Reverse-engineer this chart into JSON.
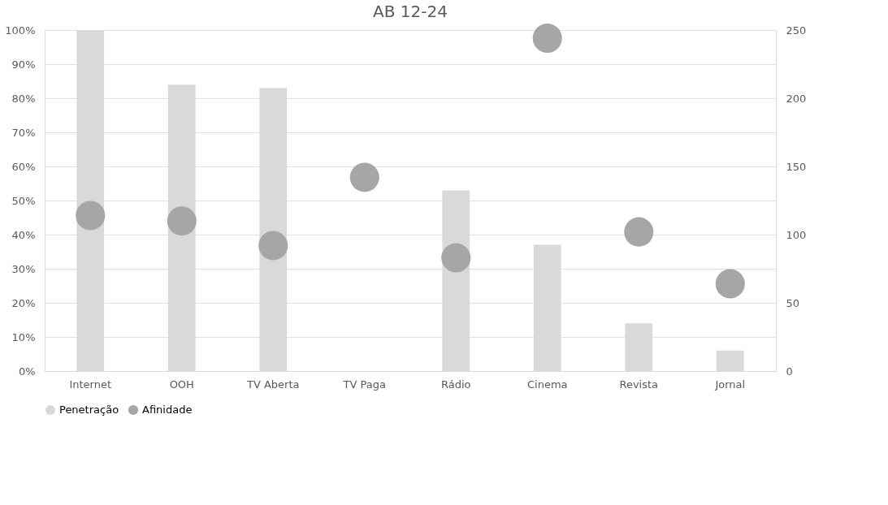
{
  "chart_data": {
    "type": "bar",
    "title": "AB 12-24",
    "categories": [
      "Internet",
      "OOH",
      "TV Aberta",
      "TV Paga",
      "Rádio",
      "Cinema",
      "Revista",
      "Jornal"
    ],
    "series": [
      {
        "name": "Penetração",
        "color": "#d9d9d9",
        "values": [
          100,
          84,
          83,
          null,
          53,
          37,
          14,
          6
        ]
      },
      {
        "name": "Afinidade",
        "type": "scatter",
        "axis": "y2",
        "color": "#a6a6a6",
        "values": [
          114,
          110,
          92,
          142,
          83,
          244,
          102,
          64
        ]
      }
    ],
    "ylim": [
      0,
      100
    ],
    "yticks": [
      {
        "value": 0,
        "label": "0%"
      },
      {
        "value": 10,
        "label": "10%"
      },
      {
        "value": 20,
        "label": "20%"
      },
      {
        "value": 30,
        "label": "30%"
      },
      {
        "value": 40,
        "label": "40%"
      },
      {
        "value": 50,
        "label": "50%"
      },
      {
        "value": 60,
        "label": "60%"
      },
      {
        "value": 70,
        "label": "70%"
      },
      {
        "value": 80,
        "label": "80%"
      },
      {
        "value": 90,
        "label": "90%"
      },
      {
        "value": 100,
        "label": "100%"
      }
    ],
    "y2lim": [
      0,
      250
    ],
    "y2ticks": [
      0,
      50,
      100,
      150,
      200,
      250
    ],
    "grid": "y",
    "legend": "bottom",
    "marker": "circle"
  }
}
